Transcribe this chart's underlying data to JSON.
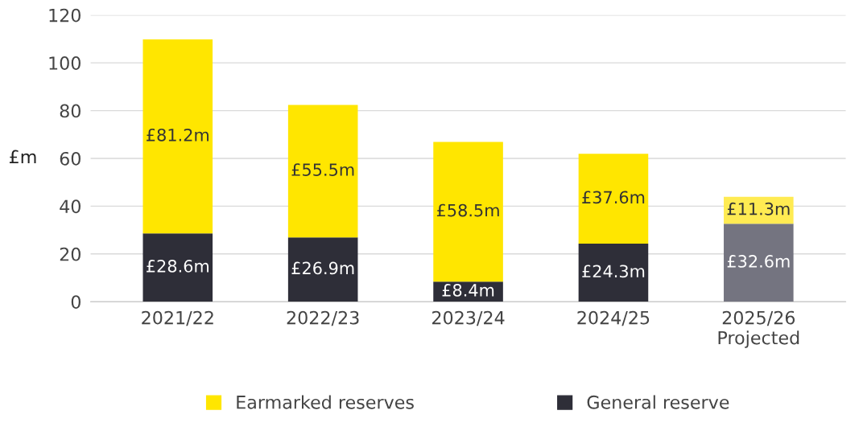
{
  "chart_data": {
    "type": "bar",
    "stacked": true,
    "ylabel": "£m",
    "categories": [
      "2021/22",
      "2022/23",
      "2023/24",
      "2024/25",
      "2025/26\nProjected"
    ],
    "series": [
      {
        "name": "General reserve",
        "color": "#2e2e38",
        "colors": [
          "#2e2e38",
          "#2e2e38",
          "#2e2e38",
          "#2e2e38",
          "#747480"
        ],
        "values": [
          28.6,
          26.9,
          8.4,
          24.3,
          32.6
        ],
        "value_labels": [
          "£28.6m",
          "£26.9m",
          "£8.4m",
          "£24.3m",
          "£32.6m"
        ]
      },
      {
        "name": "Earmarked reserves",
        "color": "#ffe600",
        "colors": [
          "#ffe600",
          "#ffe600",
          "#ffe600",
          "#ffe600",
          "#ffeb52"
        ],
        "values": [
          81.2,
          55.5,
          58.5,
          37.6,
          11.3
        ],
        "value_labels": [
          "£81.2m",
          "£55.5m",
          "£58.5m",
          "£37.6m",
          "£11.3m"
        ]
      }
    ],
    "ylim": [
      0,
      120
    ],
    "yticks": [
      0,
      20,
      40,
      60,
      80,
      100,
      120
    ],
    "grid": "y",
    "legend": "bottom"
  }
}
